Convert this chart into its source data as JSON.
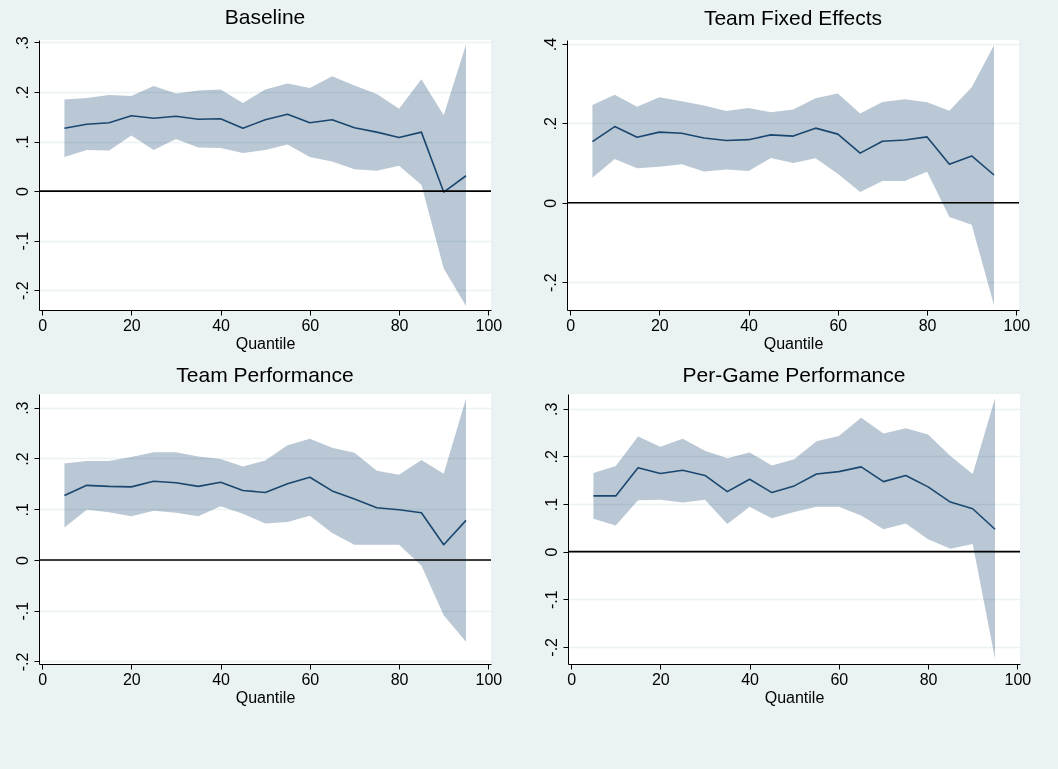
{
  "chart_data": [
    {
      "type": "line",
      "title": "Baseline",
      "xlabel": "Quantile",
      "x": [
        5,
        10,
        15,
        20,
        25,
        30,
        35,
        40,
        45,
        50,
        55,
        60,
        65,
        70,
        75,
        80,
        85,
        90,
        95
      ],
      "series": [
        {
          "color": "#1a476f",
          "values": [
            0.127,
            0.135,
            0.138,
            0.152,
            0.147,
            0.151,
            0.145,
            0.146,
            0.127,
            0.144,
            0.155,
            0.138,
            0.144,
            0.128,
            0.119,
            0.108,
            0.119,
            -0.002,
            0.031
          ],
          "upper": [
            0.185,
            0.188,
            0.194,
            0.192,
            0.212,
            0.197,
            0.203,
            0.205,
            0.178,
            0.205,
            0.217,
            0.208,
            0.232,
            0.213,
            0.196,
            0.166,
            0.226,
            0.153,
            0.296
          ],
          "lower": [
            0.069,
            0.083,
            0.082,
            0.112,
            0.083,
            0.105,
            0.088,
            0.087,
            0.077,
            0.083,
            0.094,
            0.069,
            0.06,
            0.044,
            0.041,
            0.051,
            0.013,
            -0.156,
            -0.232
          ]
        }
      ],
      "xlim": [
        -0.7,
        100.6
      ],
      "ylim": [
        -0.24,
        0.305
      ],
      "xticks": [
        0,
        20,
        40,
        60,
        80,
        100
      ],
      "yticks": [
        {
          "value": -0.2,
          "label": "-.2"
        },
        {
          "value": -0.1,
          "label": "-.1"
        },
        {
          "value": 0,
          "label": "0"
        },
        {
          "value": 0.1,
          "label": ".1"
        },
        {
          "value": 0.2,
          "label": ".2"
        },
        {
          "value": 0.3,
          "label": ".3"
        }
      ],
      "ref_lines": [
        {
          "axis": "y",
          "value": 0,
          "color": "#000000"
        }
      ],
      "grid": "y"
    },
    {
      "type": "line",
      "title": "Team Fixed Effects",
      "xlabel": "Quantile",
      "x": [
        5,
        10,
        15,
        20,
        25,
        30,
        35,
        40,
        45,
        50,
        55,
        60,
        65,
        70,
        75,
        80,
        85,
        90,
        95
      ],
      "series": [
        {
          "color": "#1a476f",
          "values": [
            0.154,
            0.192,
            0.165,
            0.178,
            0.175,
            0.163,
            0.157,
            0.159,
            0.171,
            0.168,
            0.188,
            0.173,
            0.125,
            0.155,
            0.158,
            0.166,
            0.097,
            0.118,
            0.07
          ],
          "upper": [
            0.246,
            0.272,
            0.242,
            0.266,
            0.256,
            0.245,
            0.231,
            0.239,
            0.228,
            0.235,
            0.263,
            0.275,
            0.225,
            0.254,
            0.261,
            0.253,
            0.232,
            0.291,
            0.397
          ],
          "lower": [
            0.063,
            0.11,
            0.087,
            0.091,
            0.097,
            0.079,
            0.084,
            0.08,
            0.113,
            0.1,
            0.112,
            0.073,
            0.027,
            0.055,
            0.055,
            0.078,
            -0.036,
            -0.055,
            -0.258
          ]
        }
      ],
      "xlim": [
        -0.7,
        100.6
      ],
      "ylim": [
        -0.27,
        0.41
      ],
      "xticks": [
        0,
        20,
        40,
        60,
        80,
        100
      ],
      "yticks": [
        {
          "value": -0.2,
          "label": "-.2"
        },
        {
          "value": 0,
          "label": "0"
        },
        {
          "value": 0.2,
          "label": ".2"
        },
        {
          "value": 0.4,
          "label": ".4"
        }
      ],
      "ref_lines": [
        {
          "axis": "y",
          "value": 0,
          "color": "#000000"
        }
      ],
      "grid": "y"
    },
    {
      "type": "line",
      "title": "Team Performance",
      "xlabel": "Quantile",
      "x": [
        5,
        10,
        15,
        20,
        25,
        30,
        35,
        40,
        45,
        50,
        55,
        60,
        65,
        70,
        75,
        80,
        85,
        90,
        95
      ],
      "series": [
        {
          "color": "#1a476f",
          "values": [
            0.127,
            0.147,
            0.145,
            0.144,
            0.155,
            0.152,
            0.145,
            0.153,
            0.137,
            0.133,
            0.15,
            0.163,
            0.136,
            0.12,
            0.103,
            0.099,
            0.093,
            0.03,
            0.078
          ],
          "upper": [
            0.19,
            0.195,
            0.195,
            0.203,
            0.212,
            0.212,
            0.204,
            0.199,
            0.184,
            0.196,
            0.226,
            0.239,
            0.221,
            0.211,
            0.176,
            0.168,
            0.197,
            0.17,
            0.318
          ],
          "lower": [
            0.064,
            0.099,
            0.094,
            0.086,
            0.097,
            0.093,
            0.086,
            0.106,
            0.091,
            0.072,
            0.075,
            0.087,
            0.053,
            0.03,
            0.03,
            0.03,
            -0.011,
            -0.109,
            -0.161
          ]
        }
      ],
      "xlim": [
        -0.7,
        100.6
      ],
      "ylim": [
        -0.205,
        0.327
      ],
      "xticks": [
        0,
        20,
        40,
        60,
        80,
        100
      ],
      "yticks": [
        {
          "value": -0.2,
          "label": "-.2"
        },
        {
          "value": -0.1,
          "label": "-.1"
        },
        {
          "value": 0,
          "label": "0"
        },
        {
          "value": 0.1,
          "label": ".1"
        },
        {
          "value": 0.2,
          "label": ".2"
        },
        {
          "value": 0.3,
          "label": ".3"
        }
      ],
      "ref_lines": [
        {
          "axis": "y",
          "value": 0,
          "color": "#000000"
        }
      ],
      "grid": "y"
    },
    {
      "type": "line",
      "title": "Per-Game Performance",
      "xlabel": "Quantile",
      "x": [
        5,
        10,
        15,
        20,
        25,
        30,
        35,
        40,
        45,
        50,
        55,
        60,
        65,
        70,
        75,
        80,
        85,
        90,
        95
      ],
      "series": [
        {
          "color": "#1a476f",
          "values": [
            0.117,
            0.117,
            0.176,
            0.164,
            0.171,
            0.16,
            0.126,
            0.152,
            0.124,
            0.138,
            0.163,
            0.168,
            0.178,
            0.147,
            0.16,
            0.136,
            0.104,
            0.09,
            0.047
          ],
          "upper": [
            0.165,
            0.18,
            0.242,
            0.22,
            0.237,
            0.212,
            0.196,
            0.208,
            0.181,
            0.194,
            0.232,
            0.243,
            0.281,
            0.248,
            0.259,
            0.246,
            0.201,
            0.163,
            0.322
          ],
          "lower": [
            0.069,
            0.055,
            0.108,
            0.109,
            0.103,
            0.109,
            0.058,
            0.094,
            0.07,
            0.083,
            0.094,
            0.094,
            0.076,
            0.047,
            0.059,
            0.026,
            0.006,
            0.016,
            -0.225
          ]
        }
      ],
      "xlim": [
        -0.7,
        100.6
      ],
      "ylim": [
        -0.236,
        0.331
      ],
      "xticks": [
        0,
        20,
        40,
        60,
        80,
        100
      ],
      "yticks": [
        {
          "value": -0.2,
          "label": "-.2"
        },
        {
          "value": -0.1,
          "label": "-.1"
        },
        {
          "value": 0,
          "label": "0"
        },
        {
          "value": 0.1,
          "label": ".1"
        },
        {
          "value": 0.2,
          "label": ".2"
        },
        {
          "value": 0.3,
          "label": ".3"
        }
      ],
      "ref_lines": [
        {
          "axis": "y",
          "value": 0,
          "color": "#000000"
        }
      ],
      "grid": "y"
    }
  ]
}
